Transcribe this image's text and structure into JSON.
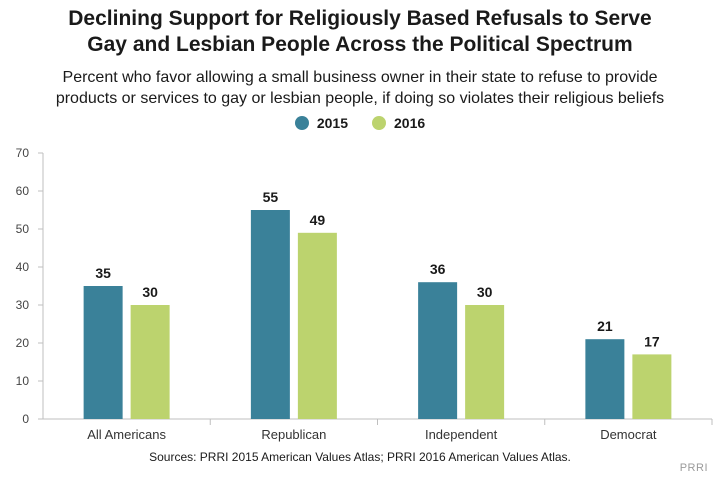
{
  "chart_data": {
    "type": "bar",
    "title_lines": [
      "Declining Support for Religiously Based Refusals to Serve",
      "Gay and Lesbian People Across the Political Spectrum"
    ],
    "subtitle_lines": [
      "Percent who favor allowing a small business owner in their state to refuse to provide",
      "products or services to gay or lesbian people, if doing so violates their religious beliefs"
    ],
    "categories": [
      "All Americans",
      "Republican",
      "Independent",
      "Democrat"
    ],
    "series": [
      {
        "name": "2015",
        "color": "#3a8199",
        "values": [
          35,
          55,
          36,
          21
        ]
      },
      {
        "name": "2016",
        "color": "#bcd36e",
        "values": [
          30,
          49,
          30,
          17
        ]
      }
    ],
    "ylim": [
      0,
      70
    ],
    "yticks": [
      0,
      10,
      20,
      30,
      40,
      50,
      60,
      70
    ],
    "grid": false,
    "legend_position": "top-center",
    "source": "Sources: PRRI 2015 American Values Atlas; PRRI 2016 American Values Atlas.",
    "brand": "PRRI"
  }
}
